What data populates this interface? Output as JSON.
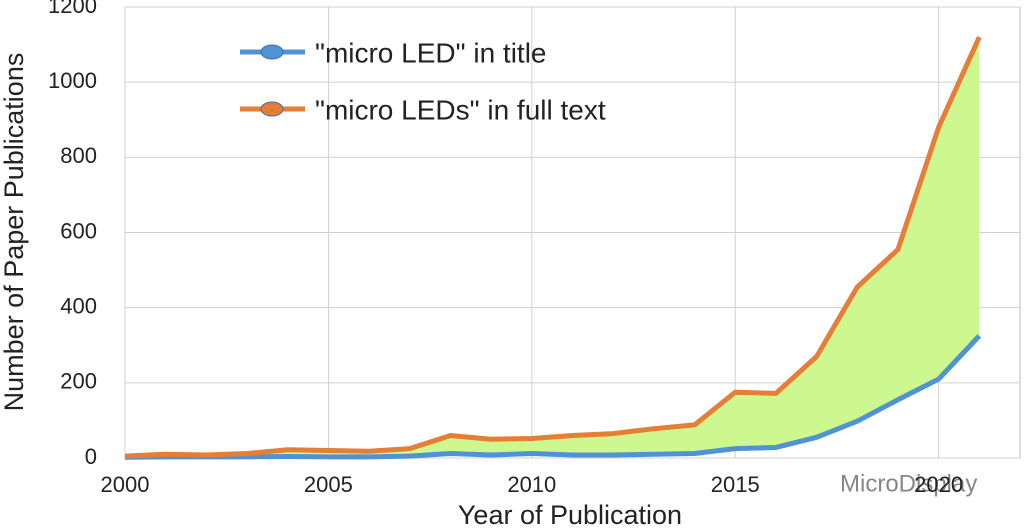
{
  "chart_data": {
    "type": "line",
    "x_label": "Year of Publication",
    "y_label": "Number of Paper Publications",
    "x": [
      2000,
      2001,
      2002,
      2003,
      2004,
      2005,
      2006,
      2007,
      2008,
      2009,
      2010,
      2011,
      2012,
      2013,
      2014,
      2015,
      2016,
      2017,
      2018,
      2019,
      2020,
      2021
    ],
    "series": [
      {
        "name": "\"micro LED\" in title",
        "color": "#4f93d6",
        "values": [
          2,
          3,
          3,
          3,
          4,
          3,
          3,
          5,
          12,
          8,
          12,
          8,
          8,
          10,
          12,
          25,
          28,
          55,
          98,
          155,
          210,
          325
        ]
      },
      {
        "name": "\"micro LEDs\" in full text",
        "color": "#e67e35",
        "values": [
          5,
          10,
          8,
          12,
          22,
          20,
          18,
          25,
          60,
          50,
          52,
          60,
          65,
          78,
          88,
          175,
          172,
          270,
          455,
          555,
          880,
          1120
        ]
      }
    ],
    "fill_between_color": "#cdf78f",
    "xlim": [
      2000,
      2022
    ],
    "xticks": [
      2000,
      2005,
      2010,
      2015,
      2020
    ],
    "ylim": [
      0,
      1200
    ],
    "yticks": [
      0,
      200,
      400,
      600,
      800,
      1000,
      1200
    ],
    "grid": true,
    "legend": "upper left",
    "watermark": "MicroDisplay"
  }
}
